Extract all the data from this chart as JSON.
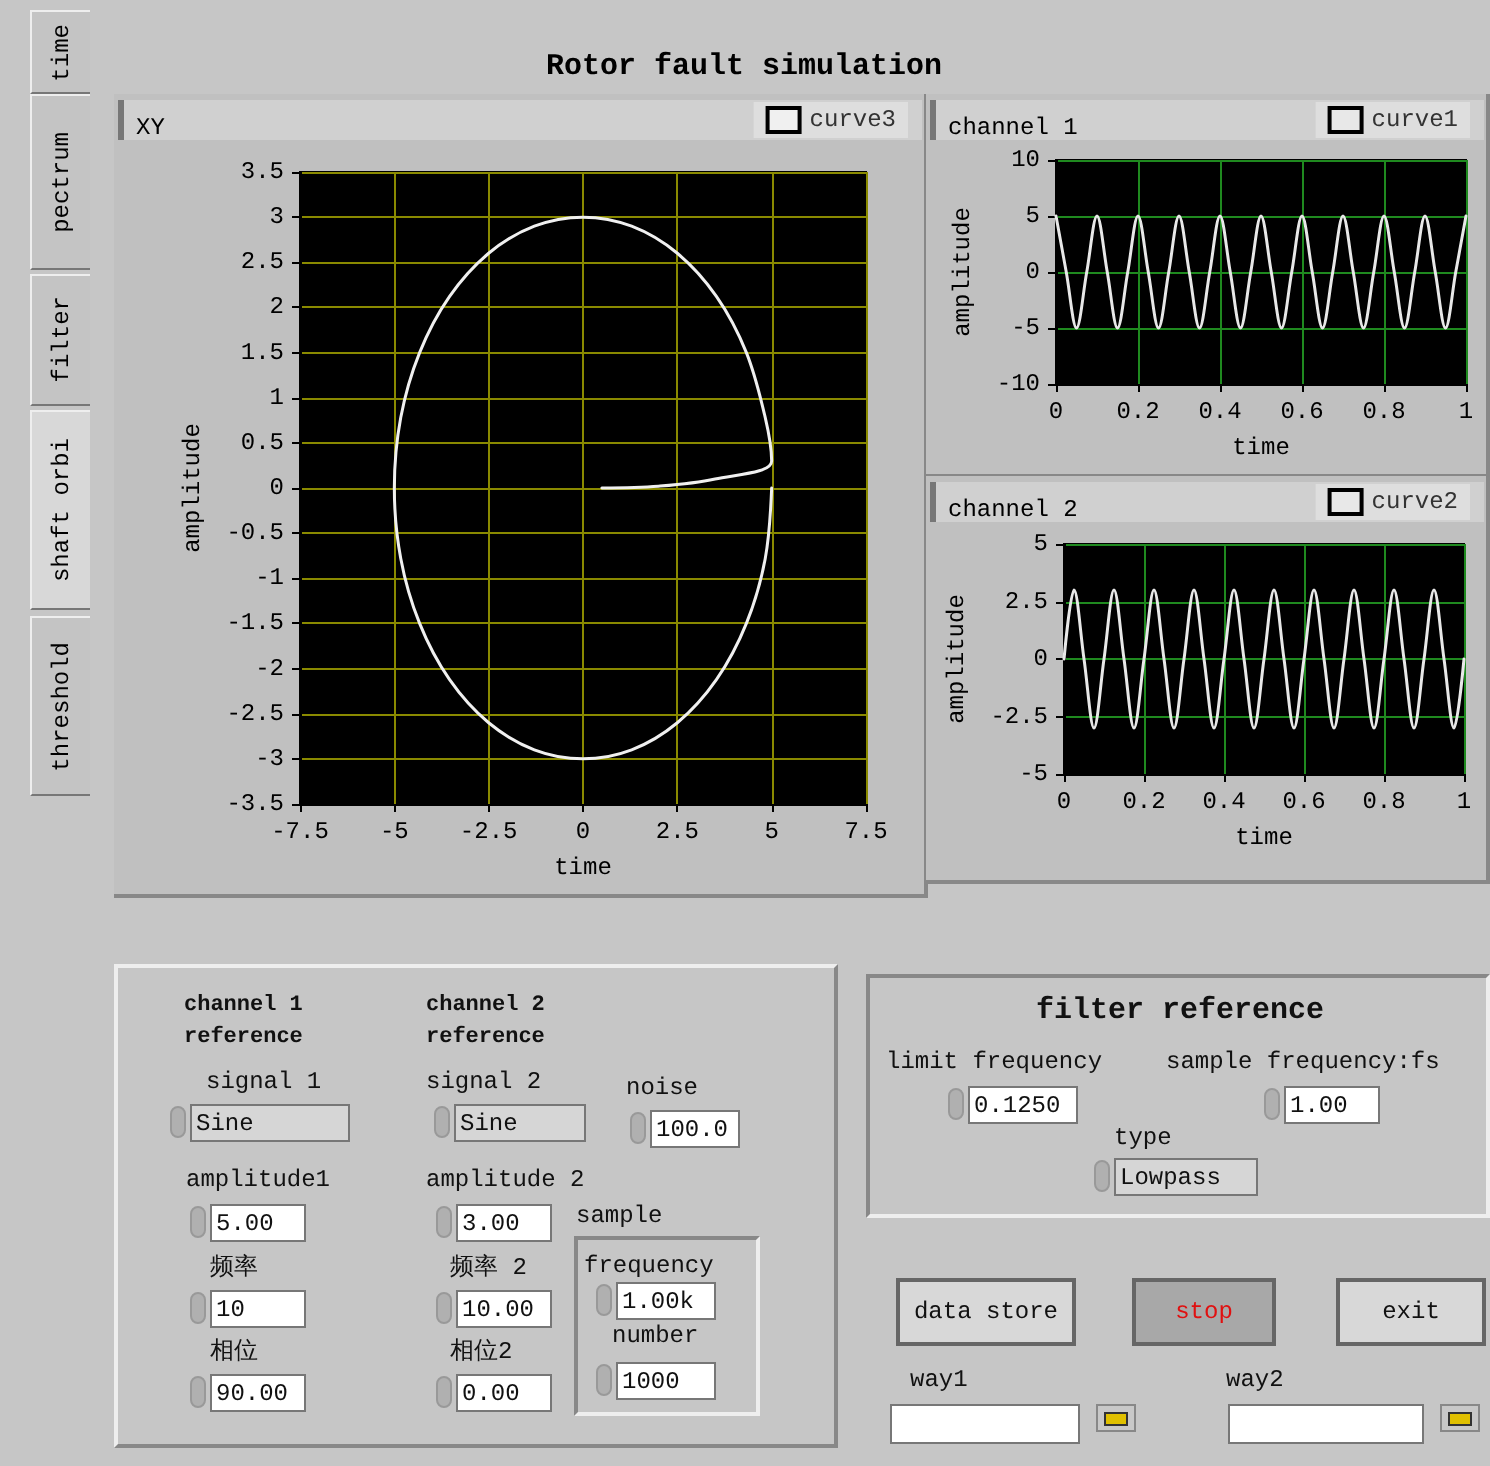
{
  "chart_data": [
    {
      "type": "other",
      "title": "Rotor fault simulation",
      "annotations": [
        "time",
        "pectrum",
        "filter",
        "shaft orbi",
        "threshold"
      ]
    },
    {
      "type": "line",
      "title": "XY",
      "xlabel": "time",
      "ylabel": "amplitude",
      "xlim": [
        -7.5,
        7.5
      ],
      "xticks": [
        -7.5,
        -5,
        -2.5,
        0,
        2.5,
        5,
        7.5
      ],
      "ylim": [
        -3.5,
        3.5
      ],
      "yticks": [
        -3.5,
        -3,
        -2.5,
        -2,
        -1.5,
        -1,
        -0.5,
        0,
        0.5,
        1,
        1.5,
        2,
        2.5,
        3,
        3.5
      ],
      "grid": true,
      "legend": "top right",
      "series": [
        {
          "name": "curve3",
          "color": "#f0f0f0",
          "x": [
            0.5,
            2,
            3.5,
            5,
            4.83,
            4.33,
            3.54,
            2.5,
            1.29,
            0,
            -1.29,
            -2.5,
            -3.54,
            -4.33,
            -4.83,
            -5,
            -4.83,
            -4.33,
            -3.54,
            -2.5,
            -1.29,
            0,
            1.29,
            2.5,
            3.54,
            4.33,
            4.83,
            5
          ],
          "values": [
            0,
            0.02,
            0.1,
            0.3,
            0.78,
            1.5,
            2.12,
            2.6,
            2.9,
            3,
            2.9,
            2.6,
            2.12,
            1.5,
            0.78,
            0,
            -0.78,
            -1.5,
            -2.12,
            -2.6,
            -2.9,
            -3,
            -2.9,
            -2.6,
            -2.12,
            -1.5,
            -0.78,
            0
          ]
        }
      ]
    },
    {
      "type": "line",
      "title": "channel 1",
      "xlabel": "time",
      "ylabel": "amplitude",
      "xlim": [
        0,
        1
      ],
      "xticks": [
        0,
        0.2,
        0.4,
        0.6,
        0.8,
        1
      ],
      "ylim": [
        -10,
        10
      ],
      "yticks": [
        -10,
        -5,
        0,
        5,
        10
      ],
      "grid": true,
      "legend": "top right",
      "x": [
        0,
        0.025,
        0.05,
        0.075,
        0.1,
        0.125,
        0.15,
        0.175,
        0.2,
        0.225,
        0.25,
        0.275,
        0.3,
        0.325,
        0.35,
        0.375,
        0.4,
        0.425,
        0.45,
        0.475,
        0.5,
        0.525,
        0.55,
        0.575,
        0.6,
        0.625,
        0.65,
        0.675,
        0.7,
        0.725,
        0.75,
        0.775,
        0.8,
        0.825,
        0.85,
        0.875,
        0.9,
        0.925,
        0.95,
        0.975,
        1
      ],
      "series": [
        {
          "name": "curve1",
          "color": "#e8e8e8",
          "values": [
            5,
            0,
            -5,
            0,
            5,
            0,
            -5,
            0,
            5,
            0,
            -5,
            0,
            5,
            0,
            -5,
            0,
            5,
            0,
            -5,
            0,
            5,
            0,
            -5,
            0,
            5,
            0,
            -5,
            0,
            5,
            0,
            -5,
            0,
            5,
            0,
            -5,
            0,
            5,
            0,
            -5,
            0,
            5
          ]
        }
      ]
    },
    {
      "type": "line",
      "title": "channel 2",
      "xlabel": "time",
      "ylabel": "amplitude",
      "xlim": [
        0,
        1
      ],
      "xticks": [
        0,
        0.2,
        0.4,
        0.6,
        0.8,
        1
      ],
      "ylim": [
        -5,
        5
      ],
      "yticks": [
        -5,
        -2.5,
        0,
        2.5,
        5
      ],
      "grid": true,
      "legend": "top right",
      "x": [
        0,
        0.025,
        0.05,
        0.075,
        0.1,
        0.125,
        0.15,
        0.175,
        0.2,
        0.225,
        0.25,
        0.275,
        0.3,
        0.325,
        0.35,
        0.375,
        0.4,
        0.425,
        0.45,
        0.475,
        0.5,
        0.525,
        0.55,
        0.575,
        0.6,
        0.625,
        0.65,
        0.675,
        0.7,
        0.725,
        0.75,
        0.775,
        0.8,
        0.825,
        0.85,
        0.875,
        0.9,
        0.925,
        0.95,
        0.975,
        1
      ],
      "series": [
        {
          "name": "curve2",
          "color": "#e8e8e8",
          "values": [
            0,
            3,
            0,
            -3,
            0,
            3,
            0,
            -3,
            0,
            3,
            0,
            -3,
            0,
            3,
            0,
            -3,
            0,
            3,
            0,
            -3,
            0,
            3,
            0,
            -3,
            0,
            3,
            0,
            -3,
            0,
            3,
            0,
            -3,
            0,
            3,
            0,
            -3,
            0,
            3,
            0,
            -3,
            0
          ]
        }
      ]
    },
    {
      "type": "other",
      "annotations": [
        "channel 1 reference",
        "signal 1",
        "Sine",
        "amplitude1",
        "5.00",
        "频率",
        "10",
        "相位",
        "90.00",
        "channel 2 reference",
        "signal 2",
        "Sine",
        "amplitude 2",
        "3.00",
        "频率 2",
        "10.00",
        "相位2",
        "0.00",
        "noise",
        "100.0",
        "sample",
        "frequency",
        "1.00k",
        "number",
        "1000",
        "filter reference",
        "limit frequency",
        "0.1250",
        "sample frequency:fs",
        "1.00",
        "type",
        "Lowpass",
        "data store",
        "stop",
        "exit",
        "way1",
        "way2"
      ]
    }
  ]
}
